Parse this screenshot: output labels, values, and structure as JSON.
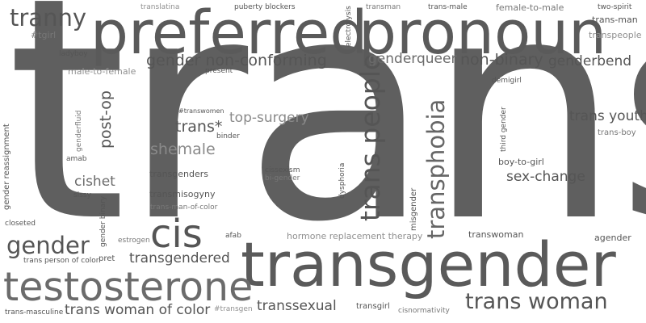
{
  "palette": {
    "background": "#ffffff",
    "dark": "#555555",
    "mid": "#6b6b6b",
    "light": "#909090"
  },
  "words": [
    "trans",
    "preferred",
    "pronoun",
    "transgender",
    "testosterone",
    "trans people",
    "transphobia",
    "trans woman",
    "cis",
    "tranny",
    "gender",
    "shemale",
    "gender non-conforming",
    "genderqueer",
    "non-binary",
    "genderbend",
    "post-op",
    "trans*",
    "top-surgery",
    "trans youth",
    "sex-change",
    "cishet",
    "transgendered",
    "trans woman of color",
    "transsexual",
    "transmisogyny",
    "transgenders",
    "trans-man-of-color",
    "hormone replacement therapy",
    "transwoman",
    "agender",
    "misgender",
    "dysphoria",
    "third gender",
    "demigirl",
    "trans-boy",
    "boy-to-girl",
    "trans-man",
    "transpeople",
    "female-to-male",
    "two-spirit",
    "trans-male",
    "transman",
    "electrolysis",
    "puberty blockers",
    "translatina",
    "#tgirl",
    "ladyboy",
    "male-to-female",
    "present",
    "#transwomen",
    "binder",
    "genderfluid",
    "amab",
    "gender reassignment",
    "sissy",
    "gender binary",
    "closeted",
    "estrogen",
    "afab",
    "pret",
    "trans person of color",
    "cissexism",
    "bi-gender",
    "#transgen",
    "transgirl",
    "cisnormativity",
    "trans-masculine"
  ]
}
